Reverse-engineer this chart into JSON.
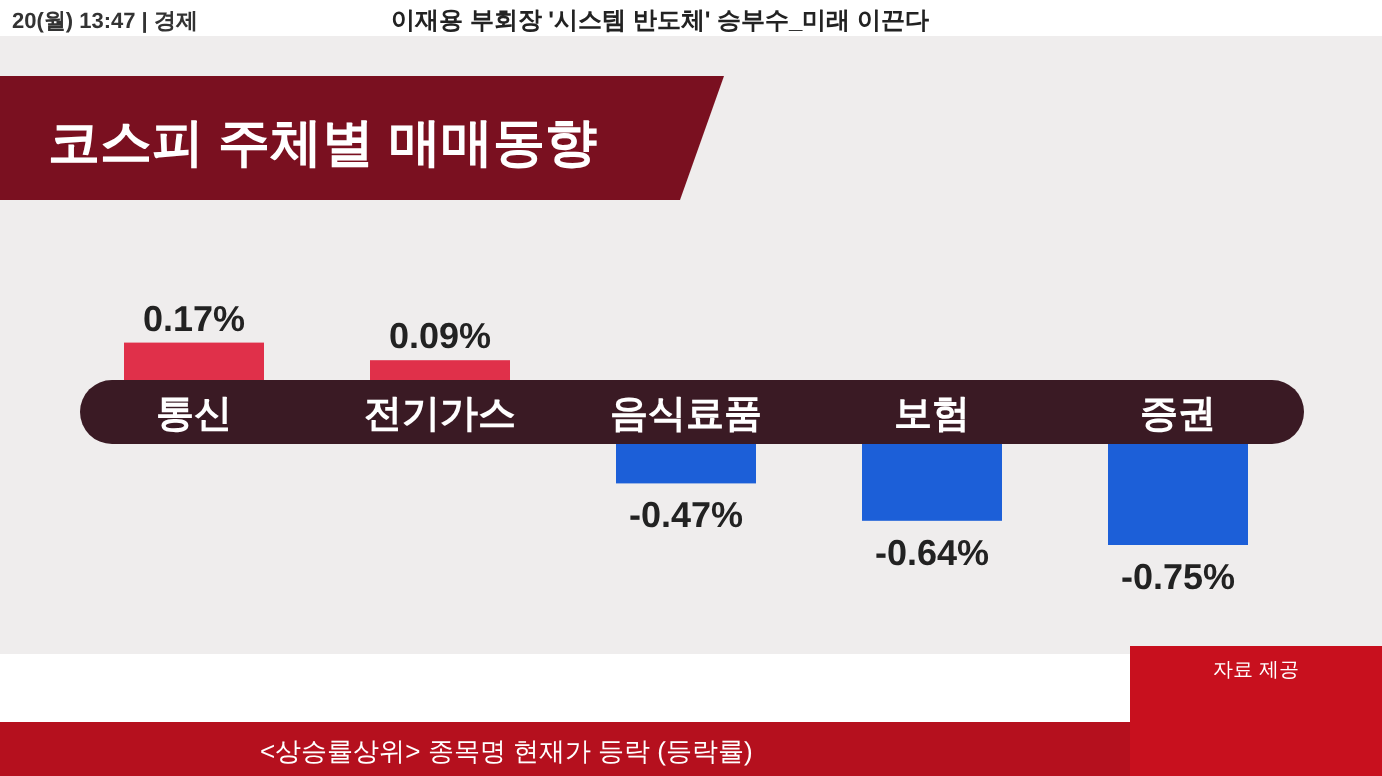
{
  "chart_data": {
    "type": "bar",
    "title": "코스피 주체별 매매동향",
    "categories": [
      "통신",
      "전기가스",
      "음식료품",
      "보험",
      "증권"
    ],
    "values": [
      0.17,
      0.09,
      -0.47,
      -0.64,
      -0.75
    ],
    "colors": [
      "#e0304a",
      "#e0304a",
      "#1c5fd8",
      "#1c5fd8",
      "#1c5fd8"
    ],
    "value_labels": [
      "0.17%",
      "0.09%",
      "-0.47%",
      "-0.64%",
      "-0.75%"
    ],
    "annotations": [
      "20(월) 13:47 | 경제",
      "이재용 부회장 '시스템 반도체' 승부수_미래 이끈다",
      "<상승률상위> 종목명 현재가 등락 (등락률)",
      "자료 제공"
    ]
  }
}
